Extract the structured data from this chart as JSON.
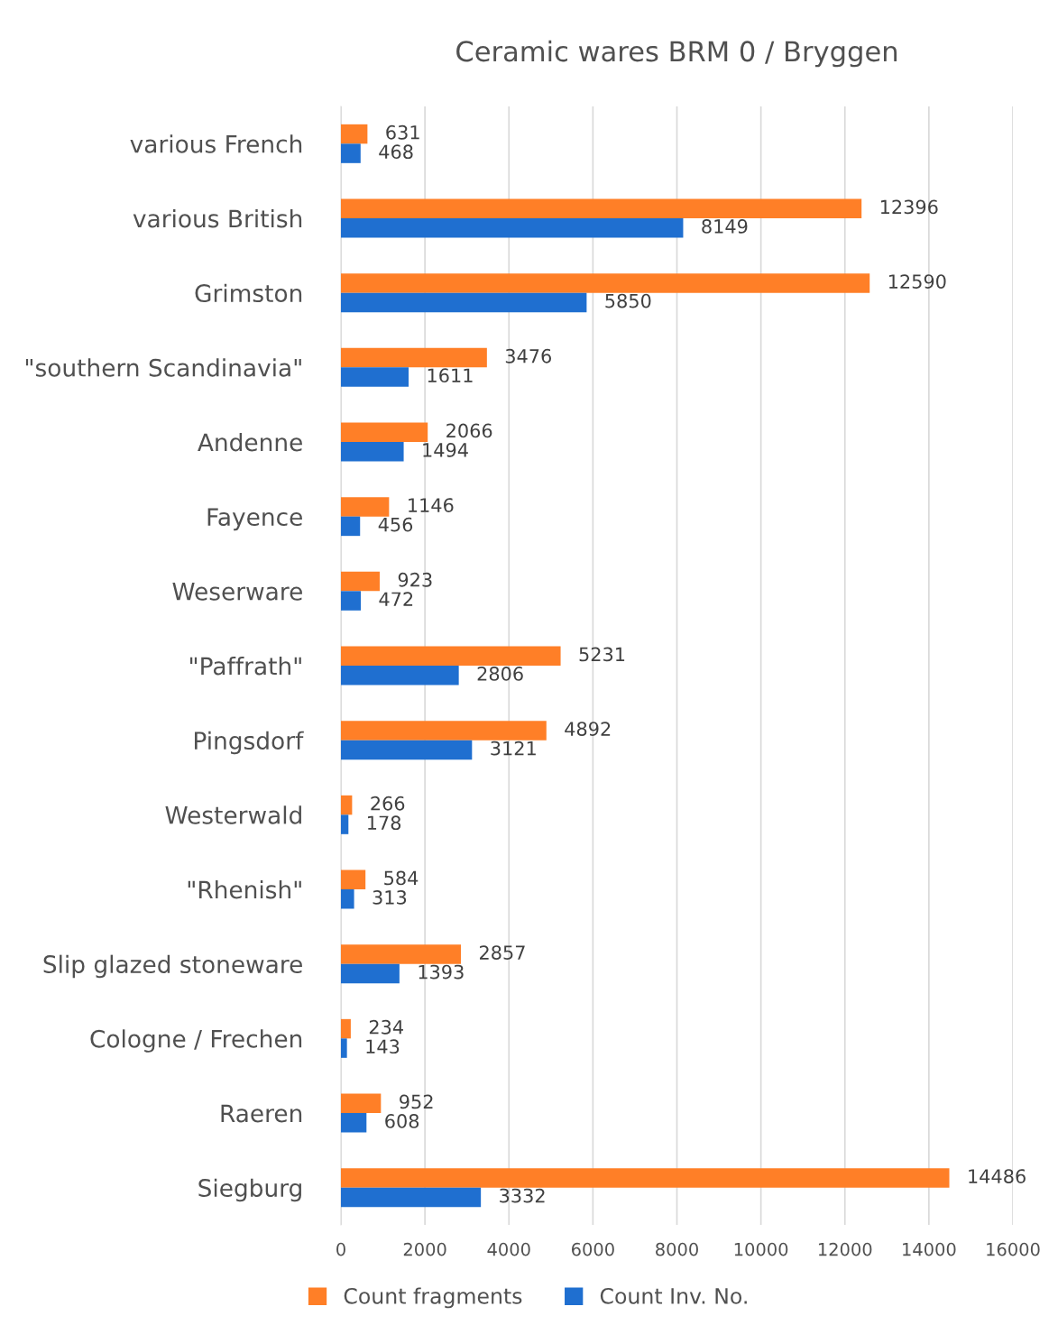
{
  "chart_data": {
    "type": "bar",
    "orientation": "horizontal",
    "title": "Ceramic wares BRM 0 / Bryggen",
    "categories": [
      "various French",
      "various British",
      "Grimston",
      "\"southern Scandinavia\"",
      "Andenne",
      "Fayence",
      "Weserware",
      "\"Paffrath\"",
      "Pingsdorf",
      "Westerwald",
      "\"Rhenish\"",
      "Slip glazed stoneware",
      "Cologne / Frechen",
      "Raeren",
      "Siegburg"
    ],
    "series": [
      {
        "name": "Count fragments",
        "color": "#ff7f27",
        "values": [
          631,
          12396,
          12590,
          3476,
          2066,
          1146,
          923,
          5231,
          4892,
          266,
          584,
          2857,
          234,
          952,
          14486
        ]
      },
      {
        "name": "Count Inv. No.",
        "color": "#1f6fd0",
        "values": [
          468,
          8149,
          5850,
          1611,
          1494,
          456,
          472,
          2806,
          3121,
          178,
          313,
          1393,
          143,
          608,
          3332
        ]
      }
    ],
    "xlim": [
      0,
      16000
    ],
    "xticks": [
      0,
      2000,
      4000,
      6000,
      8000,
      10000,
      12000,
      14000,
      16000
    ],
    "grid": "x",
    "legend": "bottom",
    "data_labels": true
  }
}
